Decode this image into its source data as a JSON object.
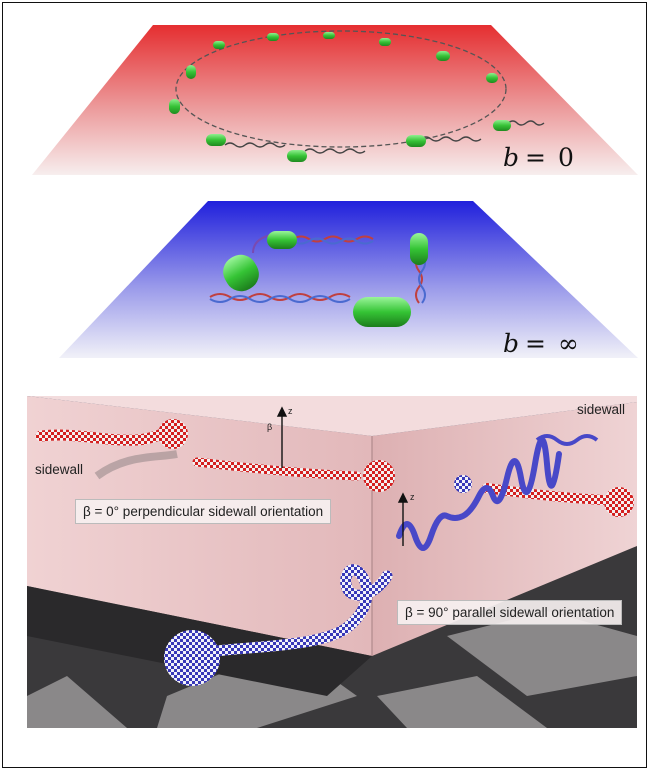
{
  "top_panel": {
    "label_var": "b",
    "label_op": "=",
    "label_val": "0"
  },
  "middle_panel": {
    "label_var": "b",
    "label_op": "=",
    "label_val": "∞"
  },
  "bottom_panel": {
    "sidewall_left": "sidewall",
    "sidewall_right": "sidewall",
    "perpendicular_label": "β = 0° perpendicular sidewall orientation",
    "parallel_label": "β = 90° parallel sidewall orientation",
    "axis_beta": "β",
    "axis_z": "z"
  },
  "colors": {
    "top_plane": "#e8383a",
    "middle_plane": "#2a2ae0",
    "swimmer_body": "#3ecc3e",
    "wall": "#e9c4c6",
    "floor_dark": "#2b2b2e",
    "floor_light": "#7d7b7c"
  }
}
